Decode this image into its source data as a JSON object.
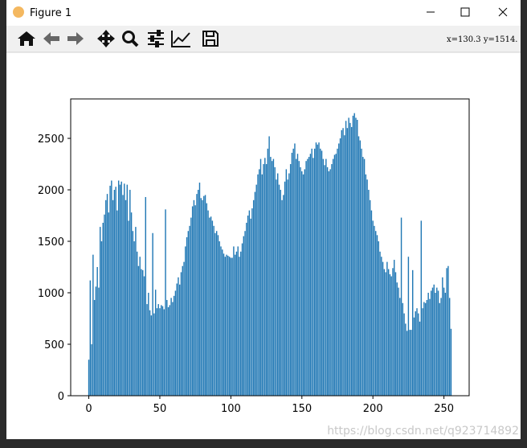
{
  "window": {
    "title": "Figure 1",
    "status": "x=130.3 y=1514.",
    "watermark": "https://blog.csdn.net/q923714892"
  },
  "chart_data": {
    "type": "bar",
    "color": "#1f77b4",
    "bar_width": 0.8,
    "xlim": [
      -12.75,
      267.75
    ],
    "xticks": [
      0,
      50,
      100,
      150,
      200,
      250
    ],
    "ylim": [
      0,
      2883
    ],
    "yticks": [
      0,
      500,
      1000,
      1500,
      2000,
      2500
    ],
    "x": [
      0,
      1,
      2,
      3,
      4,
      5,
      6,
      7,
      8,
      9,
      10,
      11,
      12,
      13,
      14,
      15,
      16,
      17,
      18,
      19,
      20,
      21,
      22,
      23,
      24,
      25,
      26,
      27,
      28,
      29,
      30,
      31,
      32,
      33,
      34,
      35,
      36,
      37,
      38,
      39,
      40,
      41,
      42,
      43,
      44,
      45,
      46,
      47,
      48,
      49,
      50,
      51,
      52,
      53,
      54,
      55,
      56,
      57,
      58,
      59,
      60,
      61,
      62,
      63,
      64,
      65,
      66,
      67,
      68,
      69,
      70,
      71,
      72,
      73,
      74,
      75,
      76,
      77,
      78,
      79,
      80,
      81,
      82,
      83,
      84,
      85,
      86,
      87,
      88,
      89,
      90,
      91,
      92,
      93,
      94,
      95,
      96,
      97,
      98,
      99,
      100,
      101,
      102,
      103,
      104,
      105,
      106,
      107,
      108,
      109,
      110,
      111,
      112,
      113,
      114,
      115,
      116,
      117,
      118,
      119,
      120,
      121,
      122,
      123,
      124,
      125,
      126,
      127,
      128,
      129,
      130,
      131,
      132,
      133,
      134,
      135,
      136,
      137,
      138,
      139,
      140,
      141,
      142,
      143,
      144,
      145,
      146,
      147,
      148,
      149,
      150,
      151,
      152,
      153,
      154,
      155,
      156,
      157,
      158,
      159,
      160,
      161,
      162,
      163,
      164,
      165,
      166,
      167,
      168,
      169,
      170,
      171,
      172,
      173,
      174,
      175,
      176,
      177,
      178,
      179,
      180,
      181,
      182,
      183,
      184,
      185,
      186,
      187,
      188,
      189,
      190,
      191,
      192,
      193,
      194,
      195,
      196,
      197,
      198,
      199,
      200,
      201,
      202,
      203,
      204,
      205,
      206,
      207,
      208,
      209,
      210,
      211,
      212,
      213,
      214,
      215,
      216,
      217,
      218,
      219,
      220,
      221,
      222,
      223,
      224,
      225,
      226,
      227,
      228,
      229,
      230,
      231,
      232,
      233,
      234,
      235,
      236,
      237,
      238,
      239,
      240,
      241,
      242,
      243,
      244,
      245,
      246,
      247,
      248,
      249,
      250,
      251,
      252,
      253,
      254,
      255
    ],
    "values": [
      350,
      1120,
      500,
      1370,
      930,
      1060,
      1250,
      1050,
      1640,
      1500,
      1680,
      1760,
      1900,
      1960,
      1780,
      2040,
      2090,
      1900,
      2000,
      2030,
      1800,
      2090,
      2050,
      2080,
      1950,
      2060,
      1900,
      2050,
      1700,
      2000,
      1780,
      1600,
      1500,
      1640,
      1400,
      1260,
      1350,
      1230,
      1220,
      1160,
      1930,
      890,
      1000,
      830,
      780,
      1580,
      800,
      1030,
      850,
      890,
      850,
      880,
      870,
      840,
      1810,
      930,
      860,
      880,
      950,
      910,
      970,
      1020,
      1090,
      1150,
      1080,
      1200,
      1260,
      1300,
      1450,
      1540,
      1600,
      1650,
      1730,
      1840,
      1900,
      1850,
      1960,
      2000,
      2070,
      1920,
      1900,
      1940,
      1950,
      1870,
      1800,
      1730,
      1740,
      1700,
      1650,
      1580,
      1600,
      1560,
      1500,
      1450,
      1420,
      1380,
      1350,
      1370,
      1360,
      1350,
      1340,
      1340,
      1450,
      1370,
      1400,
      1450,
      1350,
      1400,
      1480,
      1550,
      1600,
      1680,
      1750,
      1800,
      1720,
      1820,
      1900,
      1980,
      2050,
      2150,
      2200,
      2300,
      2150,
      2250,
      2310,
      2250,
      2400,
      2520,
      2320,
      2280,
      2300,
      2220,
      2100,
      2160,
      2050,
      2000,
      1900,
      1950,
      2080,
      2200,
      2100,
      2160,
      2250,
      2360,
      2400,
      2450,
      2300,
      2350,
      2280,
      2220,
      2180,
      2150,
      2200,
      2280,
      2300,
      2320,
      2350,
      2400,
      2310,
      2400,
      2460,
      2440,
      2460,
      2400,
      2380,
      2300,
      2240,
      2300,
      2220,
      2180,
      2200,
      2250,
      2300,
      2340,
      2350,
      2400,
      2450,
      2500,
      2580,
      2600,
      2530,
      2670,
      2600,
      2700,
      2650,
      2610,
      2720,
      2745,
      2700,
      2680,
      2520,
      2480,
      2400,
      2320,
      2300,
      2150,
      2100,
      2000,
      1900,
      1800,
      1700,
      1650,
      1600,
      1560,
      1500,
      1400,
      1350,
      1300,
      1230,
      1200,
      1300,
      1230,
      1180,
      1160,
      1240,
      1320,
      1200,
      1100,
      1050,
      950,
      1730,
      900,
      800,
      700,
      630,
      1350,
      640,
      640,
      1220,
      760,
      820,
      850,
      800,
      720,
      1700,
      850,
      910,
      900,
      930,
      1000,
      940,
      1020,
      1050,
      1080,
      1000,
      1050,
      1020,
      900,
      950,
      1150,
      1050,
      1000,
      1240,
      1260,
      950,
      650
    ]
  }
}
